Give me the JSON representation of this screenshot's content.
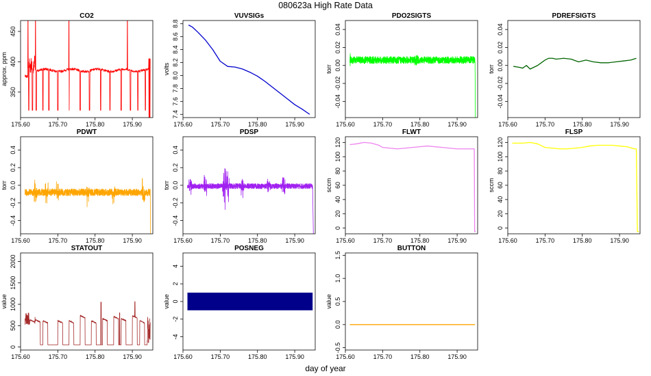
{
  "figure": {
    "title": "080623a   High Rate Data",
    "xlabel": "day of year"
  },
  "chart_data": [
    {
      "type": "line",
      "title": "CO2",
      "ylabel": "approx. ppm",
      "color": "#ff0000",
      "xlim": [
        175.6,
        175.955
      ],
      "ylim": [
        308,
        468
      ],
      "xticks": [
        "175.60",
        "175.70",
        "175.80",
        "175.90"
      ],
      "yticks": [
        350,
        400,
        450
      ],
      "series": [
        {
          "name": "CO2",
          "generator": "co2"
        }
      ]
    },
    {
      "type": "line",
      "title": "VUVSIGs",
      "ylabel": "volts",
      "color": "#0000cd",
      "xlim": [
        175.6,
        175.955
      ],
      "ylim": [
        7.35,
        8.85
      ],
      "xticks": [
        "175.60",
        "175.70",
        "175.80",
        "175.90"
      ],
      "yticks": [
        7.4,
        7.6,
        7.8,
        8.0,
        8.2,
        8.4,
        8.6,
        8.8
      ],
      "series": [
        {
          "name": "VUVSIGs",
          "x": [
            175.615,
            175.625,
            175.64,
            175.66,
            175.68,
            175.7,
            175.72,
            175.74,
            175.76,
            175.78,
            175.8,
            175.82,
            175.84,
            175.86,
            175.88,
            175.9,
            175.92,
            175.94
          ],
          "y": [
            8.78,
            8.75,
            8.67,
            8.55,
            8.4,
            8.22,
            8.14,
            8.13,
            8.1,
            8.05,
            7.99,
            7.91,
            7.82,
            7.73,
            7.64,
            7.55,
            7.48,
            7.4
          ]
        }
      ]
    },
    {
      "type": "line",
      "title": "PDO2SIGTS",
      "ylabel": "torr",
      "color": "#00ff00",
      "xlim": [
        175.6,
        175.955
      ],
      "ylim": [
        -0.058,
        0.05
      ],
      "xticks": [
        "175.60",
        "175.70",
        "175.80",
        "175.90"
      ],
      "yticks": [
        -0.04,
        -0.02,
        0.0,
        0.02,
        0.04
      ],
      "series": [
        {
          "name": "PDO2SIGTS",
          "generator": "pdo2"
        }
      ]
    },
    {
      "type": "line",
      "title": "PDREFSIGTS",
      "ylabel": "torr",
      "color": "#006400",
      "xlim": [
        175.6,
        175.955
      ],
      "ylim": [
        -0.058,
        0.05
      ],
      "xticks": [
        "175.60",
        "175.70",
        "175.80",
        "175.90"
      ],
      "yticks": [
        -0.04,
        -0.02,
        0.0,
        0.02,
        0.04
      ],
      "series": [
        {
          "name": "PDREFSIGTS",
          "x": [
            175.615,
            175.63,
            175.64,
            175.65,
            175.66,
            175.67,
            175.68,
            175.69,
            175.7,
            175.71,
            175.72,
            175.73,
            175.75,
            175.77,
            175.79,
            175.81,
            175.83,
            175.85,
            175.87,
            175.89,
            175.91,
            175.93,
            175.945
          ],
          "y": [
            -0.001,
            -0.002,
            -0.003,
            0.0,
            -0.004,
            -0.002,
            0.0,
            0.003,
            0.006,
            0.008,
            0.008,
            0.007,
            0.008,
            0.007,
            0.004,
            0.006,
            0.004,
            0.003,
            0.003,
            0.004,
            0.005,
            0.006,
            0.008
          ]
        }
      ]
    },
    {
      "type": "line",
      "title": "PDWT",
      "ylabel": "torr",
      "color": "#ffa500",
      "xlim": [
        175.6,
        175.955
      ],
      "ylim": [
        -0.55,
        0.55
      ],
      "xticks": [
        "175.60",
        "175.70",
        "175.80",
        "175.90"
      ],
      "yticks": [
        -0.4,
        -0.2,
        0.0,
        0.2,
        0.4
      ],
      "series": [
        {
          "name": "PDWT",
          "generator": "pdwt"
        }
      ]
    },
    {
      "type": "line",
      "title": "PDSP",
      "ylabel": "torr",
      "color": "#a020f0",
      "xlim": [
        175.6,
        175.955
      ],
      "ylim": [
        -0.55,
        0.55
      ],
      "xticks": [
        "175.60",
        "175.70",
        "175.80",
        "175.90"
      ],
      "yticks": [
        -0.4,
        -0.2,
        0.0,
        0.2,
        0.4
      ],
      "series": [
        {
          "name": "PDSP",
          "generator": "pdsp"
        }
      ]
    },
    {
      "type": "line",
      "title": "FLWT",
      "ylabel": "sccm",
      "color": "#ee82ee",
      "xlim": [
        175.6,
        175.955
      ],
      "ylim": [
        -8,
        128
      ],
      "xticks": [
        "175.60",
        "175.70",
        "175.80",
        "175.90"
      ],
      "yticks": [
        0,
        20,
        40,
        60,
        80,
        100,
        120
      ],
      "series": [
        {
          "name": "FLWT",
          "x": [
            175.612,
            175.63,
            175.65,
            175.67,
            175.69,
            175.7,
            175.72,
            175.74,
            175.76,
            175.78,
            175.8,
            175.82,
            175.84,
            175.86,
            175.88,
            175.9,
            175.92,
            175.94,
            175.946,
            175.947,
            175.95
          ],
          "y": [
            117,
            118,
            120,
            119,
            116,
            113,
            112,
            111,
            112,
            113,
            114,
            115,
            114,
            113,
            112,
            111,
            111,
            111,
            111,
            -5,
            -5
          ]
        }
      ]
    },
    {
      "type": "line",
      "title": "FLSP",
      "ylabel": "sccm",
      "color": "#ffff00",
      "xlim": [
        175.6,
        175.955
      ],
      "ylim": [
        -8,
        128
      ],
      "xticks": [
        "175.60",
        "175.70",
        "175.80",
        "175.90"
      ],
      "yticks": [
        0,
        20,
        40,
        60,
        80,
        100,
        120
      ],
      "series": [
        {
          "name": "FLSP",
          "x": [
            175.612,
            175.62,
            175.64,
            175.66,
            175.68,
            175.7,
            175.72,
            175.74,
            175.76,
            175.78,
            175.8,
            175.82,
            175.84,
            175.86,
            175.88,
            175.9,
            175.92,
            175.94,
            175.945,
            175.948,
            175.952
          ],
          "y": [
            119,
            119,
            119,
            120,
            118,
            113,
            112,
            111,
            111,
            112,
            113,
            115,
            116,
            116,
            116,
            115,
            114,
            111,
            111,
            -5,
            -5
          ]
        }
      ]
    },
    {
      "type": "line",
      "title": "STATOUT",
      "ylabel": "value",
      "color": "#a52a2a",
      "xlim": [
        175.6,
        175.955
      ],
      "ylim": [
        -70,
        2200
      ],
      "xticks": [
        "175.60",
        "175.70",
        "175.80",
        "175.90"
      ],
      "yticks": [
        0,
        500,
        1000,
        1500,
        2000
      ],
      "series": [
        {
          "name": "STATOUT",
          "generator": "statout"
        }
      ]
    },
    {
      "type": "area",
      "title": "POSNEG",
      "ylabel": "value",
      "color": "#00008b",
      "xlim": [
        175.6,
        175.955
      ],
      "ylim": [
        -5.5,
        5.5
      ],
      "xticks": [
        "175.60",
        "175.70",
        "175.80",
        "175.90"
      ],
      "yticks": [
        -4,
        -2,
        0,
        2,
        4
      ],
      "series": [
        {
          "name": "POSNEG",
          "x": [
            175.612,
            175.948
          ],
          "low": -1,
          "high": 1
        }
      ]
    },
    {
      "type": "line",
      "title": "BUTTON",
      "ylabel": "value",
      "color": "#ffa500",
      "xlim": [
        175.6,
        175.955
      ],
      "ylim": [
        -0.55,
        1.55
      ],
      "xticks": [
        "175.60",
        "175.70",
        "175.80",
        "175.90"
      ],
      "yticks": [
        -0.5,
        0.0,
        0.5,
        1.0,
        1.5
      ],
      "series": [
        {
          "name": "BUTTON",
          "x": [
            175.612,
            175.948
          ],
          "y": [
            0,
            0
          ]
        }
      ]
    }
  ]
}
